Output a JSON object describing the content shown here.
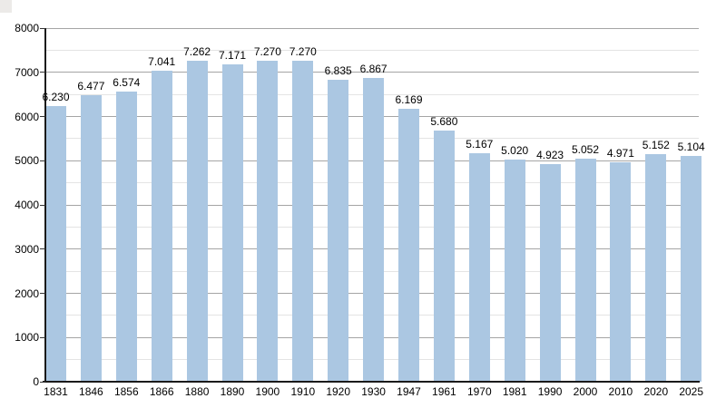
{
  "page": {
    "background": "#ffffff",
    "corner_artifact_color": "#eceae8"
  },
  "chart_data": {
    "type": "bar",
    "title": "",
    "xlabel": "",
    "ylabel": "",
    "categories": [
      "1831",
      "1846",
      "1856",
      "1866",
      "1880",
      "1890",
      "1900",
      "1910",
      "1920",
      "1930",
      "1947",
      "1961",
      "1970",
      "1981",
      "1990",
      "2000",
      "2010",
      "2020",
      "2025"
    ],
    "values": [
      6230,
      6477,
      6574,
      7041,
      7262,
      7171,
      7270,
      7270,
      6835,
      6867,
      6169,
      5680,
      5167,
      5020,
      4923,
      5052,
      4971,
      5152,
      5104
    ],
    "value_labels": [
      "6.230",
      "6.477",
      "6.574",
      "7.041",
      "7.262",
      "7.171",
      "7.270",
      "7.270",
      "6.835",
      "6.867",
      "6.169",
      "5.680",
      "5.167",
      "5.020",
      "4.923",
      "5.052",
      "4.971",
      "5.152",
      "5.104"
    ],
    "ylim": [
      0,
      8000
    ],
    "y_major_ticks": [
      0,
      1000,
      2000,
      3000,
      4000,
      5000,
      6000,
      7000,
      8000
    ],
    "y_minor_step": 500,
    "grid": "horizontal, major and minor, on",
    "legend": "none",
    "colors": {
      "bar": "#abc7e2",
      "major_grid": "#a5a5a5",
      "minor_grid": "#e4e4e4",
      "axis": "#1a1a1a",
      "tick": "#333333",
      "text": "#000000"
    }
  }
}
